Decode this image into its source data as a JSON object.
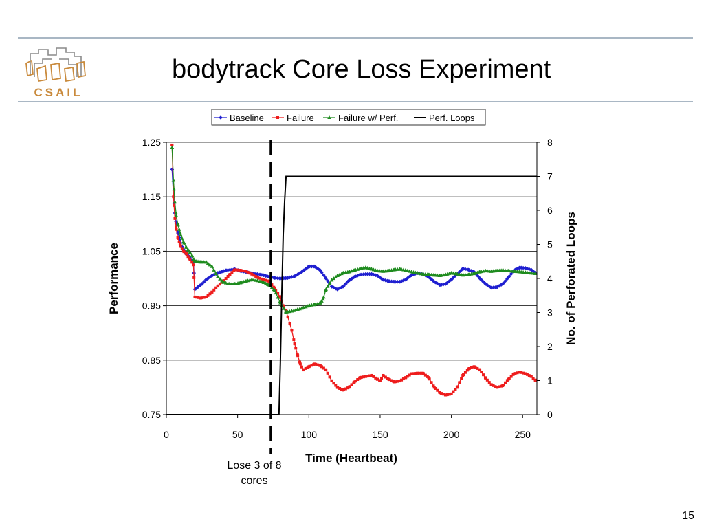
{
  "slide": {
    "title": "bodytrack Core Loss Experiment",
    "logo_text": "CSAIL",
    "page_number": "15"
  },
  "colors": {
    "baseline": "#1f1fd0",
    "failure": "#ee1c1c",
    "failure_perf": "#1e8b1e",
    "perf_loops": "#000000",
    "rule": "#a9b7c4",
    "logo_orange": "#c98a3c",
    "logo_gray": "#8a8a8a"
  },
  "chart_data": {
    "type": "line",
    "title": "",
    "xlabel": "Time (Heartbeat)",
    "ylabel": "Performance",
    "y2label": "No. of Perforated Loops",
    "xlim": [
      0,
      260
    ],
    "ylim": [
      0.75,
      1.25
    ],
    "y2lim": [
      0,
      8
    ],
    "xticks": [
      "0",
      "50",
      "100",
      "150",
      "200",
      "250"
    ],
    "yticks": [
      "0.75",
      "0.85",
      "0.95",
      "1.05",
      "1.15",
      "1.25"
    ],
    "y2ticks": [
      "0",
      "1",
      "2",
      "3",
      "4",
      "5",
      "6",
      "7",
      "8"
    ],
    "grid": "horizontal",
    "legend": "top",
    "annotation": {
      "text": "Lose 3 of 8 cores",
      "x": 73
    },
    "series": [
      {
        "name": "Baseline",
        "axis": "left",
        "marker": "diamond",
        "points": [
          [
            4,
            1.2
          ],
          [
            5,
            1.15
          ],
          [
            6,
            1.12
          ],
          [
            7,
            1.1
          ],
          [
            8,
            1.085
          ],
          [
            9,
            1.075
          ],
          [
            10,
            1.065
          ],
          [
            11,
            1.058
          ],
          [
            12,
            1.053
          ],
          [
            14,
            1.045
          ],
          [
            16,
            1.04
          ],
          [
            18,
            1.033
          ],
          [
            19,
            1.03
          ],
          [
            20,
            0.98
          ],
          [
            22,
            0.984
          ],
          [
            25,
            0.99
          ],
          [
            28,
            0.998
          ],
          [
            32,
            1.005
          ],
          [
            36,
            1.01
          ],
          [
            42,
            1.015
          ],
          [
            48,
            1.017
          ],
          [
            52,
            1.014
          ],
          [
            56,
            1.012
          ],
          [
            60,
            1.01
          ],
          [
            64,
            1.008
          ],
          [
            68,
            1.006
          ],
          [
            72,
            1.003
          ],
          [
            76,
            1.001
          ],
          [
            80,
            1.0
          ],
          [
            85,
            1.001
          ],
          [
            90,
            1.004
          ],
          [
            95,
            1.012
          ],
          [
            100,
            1.022
          ],
          [
            104,
            1.022
          ],
          [
            108,
            1.015
          ],
          [
            112,
            1.0
          ],
          [
            116,
            0.985
          ],
          [
            120,
            0.98
          ],
          [
            124,
            0.985
          ],
          [
            128,
            0.996
          ],
          [
            132,
            1.003
          ],
          [
            136,
            1.007
          ],
          [
            140,
            1.008
          ],
          [
            144,
            1.008
          ],
          [
            148,
            1.005
          ],
          [
            152,
            0.998
          ],
          [
            156,
            0.995
          ],
          [
            160,
            0.994
          ],
          [
            164,
            0.994
          ],
          [
            168,
            0.998
          ],
          [
            172,
            1.006
          ],
          [
            176,
            1.01
          ],
          [
            180,
            1.008
          ],
          [
            184,
            1.003
          ],
          [
            188,
            0.994
          ],
          [
            192,
            0.988
          ],
          [
            196,
            0.99
          ],
          [
            200,
            0.998
          ],
          [
            204,
            1.008
          ],
          [
            208,
            1.018
          ],
          [
            212,
            1.016
          ],
          [
            216,
            1.012
          ],
          [
            220,
            1.0
          ],
          [
            224,
            0.99
          ],
          [
            228,
            0.983
          ],
          [
            232,
            0.984
          ],
          [
            236,
            0.99
          ],
          [
            240,
            1.002
          ],
          [
            244,
            1.015
          ],
          [
            248,
            1.02
          ],
          [
            252,
            1.019
          ],
          [
            256,
            1.016
          ],
          [
            259,
            1.01
          ]
        ]
      },
      {
        "name": "Failure",
        "axis": "left",
        "marker": "square",
        "points": [
          [
            4,
            1.245
          ],
          [
            5,
            1.15
          ],
          [
            6,
            1.11
          ],
          [
            7,
            1.09
          ],
          [
            8,
            1.075
          ],
          [
            9,
            1.067
          ],
          [
            10,
            1.06
          ],
          [
            12,
            1.05
          ],
          [
            14,
            1.045
          ],
          [
            16,
            1.037
          ],
          [
            18,
            1.03
          ],
          [
            19,
            1.025
          ],
          [
            20,
            0.966
          ],
          [
            24,
            0.964
          ],
          [
            28,
            0.966
          ],
          [
            32,
            0.975
          ],
          [
            36,
            0.986
          ],
          [
            40,
            0.995
          ],
          [
            44,
            1.006
          ],
          [
            48,
            1.016
          ],
          [
            52,
            1.015
          ],
          [
            56,
            1.013
          ],
          [
            60,
            1.008
          ],
          [
            64,
            1.002
          ],
          [
            68,
            0.998
          ],
          [
            72,
            0.995
          ],
          [
            76,
            0.982
          ],
          [
            80,
            0.965
          ],
          [
            84,
            0.94
          ],
          [
            88,
            0.905
          ],
          [
            90,
            0.88
          ],
          [
            92,
            0.86
          ],
          [
            94,
            0.843
          ],
          [
            96,
            0.832
          ],
          [
            100,
            0.838
          ],
          [
            104,
            0.843
          ],
          [
            108,
            0.84
          ],
          [
            112,
            0.832
          ],
          [
            116,
            0.812
          ],
          [
            120,
            0.8
          ],
          [
            124,
            0.795
          ],
          [
            128,
            0.8
          ],
          [
            132,
            0.81
          ],
          [
            136,
            0.818
          ],
          [
            140,
            0.82
          ],
          [
            144,
            0.822
          ],
          [
            148,
            0.815
          ],
          [
            150,
            0.812
          ],
          [
            152,
            0.822
          ],
          [
            156,
            0.815
          ],
          [
            160,
            0.81
          ],
          [
            164,
            0.812
          ],
          [
            168,
            0.818
          ],
          [
            172,
            0.825
          ],
          [
            176,
            0.826
          ],
          [
            180,
            0.826
          ],
          [
            184,
            0.818
          ],
          [
            188,
            0.8
          ],
          [
            192,
            0.79
          ],
          [
            196,
            0.786
          ],
          [
            200,
            0.788
          ],
          [
            204,
            0.8
          ],
          [
            208,
            0.822
          ],
          [
            212,
            0.834
          ],
          [
            216,
            0.838
          ],
          [
            220,
            0.832
          ],
          [
            224,
            0.817
          ],
          [
            228,
            0.805
          ],
          [
            232,
            0.8
          ],
          [
            236,
            0.803
          ],
          [
            240,
            0.815
          ],
          [
            244,
            0.825
          ],
          [
            248,
            0.828
          ],
          [
            252,
            0.825
          ],
          [
            256,
            0.82
          ],
          [
            259,
            0.813
          ]
        ]
      },
      {
        "name": "Failure w/ Perf.",
        "axis": "left",
        "marker": "triangle",
        "points": [
          [
            4,
            1.24
          ],
          [
            5,
            1.18
          ],
          [
            6,
            1.14
          ],
          [
            7,
            1.115
          ],
          [
            8,
            1.1
          ],
          [
            9,
            1.09
          ],
          [
            10,
            1.08
          ],
          [
            12,
            1.067
          ],
          [
            14,
            1.057
          ],
          [
            16,
            1.05
          ],
          [
            18,
            1.042
          ],
          [
            20,
            1.032
          ],
          [
            24,
            1.03
          ],
          [
            28,
            1.03
          ],
          [
            32,
            1.022
          ],
          [
            36,
            1.003
          ],
          [
            40,
            0.993
          ],
          [
            44,
            0.99
          ],
          [
            48,
            0.99
          ],
          [
            52,
            0.992
          ],
          [
            56,
            0.995
          ],
          [
            60,
            0.998
          ],
          [
            64,
            0.996
          ],
          [
            68,
            0.993
          ],
          [
            72,
            0.988
          ],
          [
            76,
            0.978
          ],
          [
            80,
            0.955
          ],
          [
            84,
            0.938
          ],
          [
            88,
            0.94
          ],
          [
            92,
            0.943
          ],
          [
            96,
            0.946
          ],
          [
            100,
            0.95
          ],
          [
            104,
            0.952
          ],
          [
            108,
            0.955
          ],
          [
            110,
            0.962
          ],
          [
            112,
            0.98
          ],
          [
            116,
            0.997
          ],
          [
            120,
            1.005
          ],
          [
            124,
            1.01
          ],
          [
            128,
            1.012
          ],
          [
            132,
            1.015
          ],
          [
            136,
            1.018
          ],
          [
            140,
            1.02
          ],
          [
            144,
            1.017
          ],
          [
            148,
            1.014
          ],
          [
            152,
            1.013
          ],
          [
            156,
            1.014
          ],
          [
            160,
            1.016
          ],
          [
            164,
            1.017
          ],
          [
            168,
            1.015
          ],
          [
            172,
            1.012
          ],
          [
            176,
            1.01
          ],
          [
            180,
            1.008
          ],
          [
            184,
            1.007
          ],
          [
            188,
            1.006
          ],
          [
            192,
            1.005
          ],
          [
            196,
            1.007
          ],
          [
            200,
            1.01
          ],
          [
            204,
            1.008
          ],
          [
            208,
            1.006
          ],
          [
            212,
            1.007
          ],
          [
            216,
            1.009
          ],
          [
            220,
            1.012
          ],
          [
            224,
            1.014
          ],
          [
            228,
            1.013
          ],
          [
            232,
            1.014
          ],
          [
            236,
            1.015
          ],
          [
            240,
            1.014
          ],
          [
            244,
            1.013
          ],
          [
            248,
            1.012
          ],
          [
            252,
            1.011
          ],
          [
            256,
            1.01
          ],
          [
            259,
            1.009
          ]
        ]
      },
      {
        "name": "Perf. Loops",
        "axis": "right",
        "marker": "none",
        "points": [
          [
            0,
            0
          ],
          [
            78,
            0
          ],
          [
            79,
            0
          ],
          [
            80,
            1.5
          ],
          [
            81,
            3.5
          ],
          [
            82,
            5.3
          ],
          [
            83,
            6.3
          ],
          [
            84,
            7
          ],
          [
            85,
            7
          ],
          [
            260,
            7
          ]
        ]
      }
    ]
  }
}
